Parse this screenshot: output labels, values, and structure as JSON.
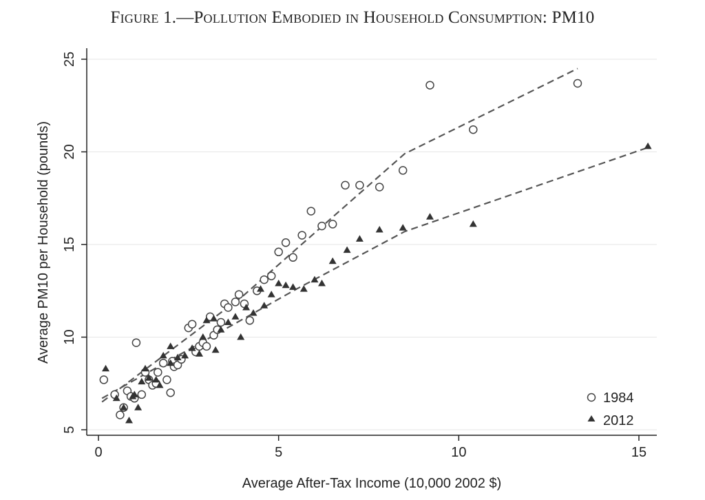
{
  "chart_data": {
    "type": "scatter",
    "title_prefix": "Figure 1.—",
    "title_main": "Pollution Embodied in Household Consumption",
    "title_suffix": ": PM10",
    "xlabel": "Average After-Tax Income (10,000 2002 $)",
    "ylabel": "Average PM10 per Household (pounds)",
    "xlim": [
      0,
      15.5
    ],
    "ylim": [
      5,
      25.5
    ],
    "xticks": [
      0,
      5,
      10,
      15
    ],
    "yticks": [
      5,
      10,
      15,
      20,
      25
    ],
    "grid": "horizontal",
    "legend_position": "bottom-right",
    "series": [
      {
        "name": "1984",
        "marker": "hollow-circle",
        "points": [
          [
            0.15,
            7.7
          ],
          [
            0.45,
            6.9
          ],
          [
            0.6,
            5.8
          ],
          [
            0.7,
            6.2
          ],
          [
            0.8,
            7.1
          ],
          [
            0.9,
            6.8
          ],
          [
            1.0,
            6.7
          ],
          [
            1.05,
            9.7
          ],
          [
            1.2,
            6.9
          ],
          [
            1.3,
            8.1
          ],
          [
            1.4,
            7.7
          ],
          [
            1.5,
            7.4
          ],
          [
            1.6,
            7.5
          ],
          [
            1.65,
            8.1
          ],
          [
            1.8,
            8.6
          ],
          [
            1.9,
            7.7
          ],
          [
            2.0,
            7.0
          ],
          [
            2.05,
            8.7
          ],
          [
            2.1,
            8.4
          ],
          [
            2.2,
            8.5
          ],
          [
            2.3,
            8.8
          ],
          [
            2.5,
            10.5
          ],
          [
            2.6,
            10.7
          ],
          [
            2.7,
            9.2
          ],
          [
            2.8,
            9.5
          ],
          [
            2.9,
            9.7
          ],
          [
            3.0,
            9.5
          ],
          [
            3.1,
            11.1
          ],
          [
            3.2,
            10.1
          ],
          [
            3.3,
            10.4
          ],
          [
            3.4,
            10.8
          ],
          [
            3.5,
            11.8
          ],
          [
            3.6,
            11.6
          ],
          [
            3.8,
            11.9
          ],
          [
            3.9,
            12.3
          ],
          [
            4.05,
            11.8
          ],
          [
            4.2,
            10.9
          ],
          [
            4.4,
            12.5
          ],
          [
            4.6,
            13.1
          ],
          [
            4.8,
            13.3
          ],
          [
            5.0,
            14.6
          ],
          [
            5.2,
            15.1
          ],
          [
            5.4,
            14.3
          ],
          [
            5.65,
            15.5
          ],
          [
            5.9,
            16.8
          ],
          [
            6.2,
            16.0
          ],
          [
            6.5,
            16.1
          ],
          [
            6.85,
            18.2
          ],
          [
            7.25,
            18.2
          ],
          [
            7.8,
            18.1
          ],
          [
            8.45,
            19.0
          ],
          [
            9.2,
            23.6
          ],
          [
            10.4,
            21.2
          ],
          [
            13.3,
            23.7
          ]
        ],
        "fit_line": [
          [
            0.1,
            6.5
          ],
          [
            4.0,
            12.2
          ],
          [
            8.5,
            19.9
          ],
          [
            13.3,
            24.5
          ]
        ]
      },
      {
        "name": "2012",
        "marker": "filled-triangle",
        "points": [
          [
            0.2,
            8.3
          ],
          [
            0.5,
            6.7
          ],
          [
            0.7,
            6.2
          ],
          [
            0.85,
            5.5
          ],
          [
            0.95,
            6.8
          ],
          [
            1.0,
            6.9
          ],
          [
            1.1,
            6.2
          ],
          [
            1.2,
            7.6
          ],
          [
            1.3,
            8.3
          ],
          [
            1.4,
            7.8
          ],
          [
            1.6,
            7.7
          ],
          [
            1.7,
            7.4
          ],
          [
            1.8,
            9.0
          ],
          [
            2.0,
            8.6
          ],
          [
            2.0,
            9.5
          ],
          [
            2.2,
            8.9
          ],
          [
            2.4,
            9.0
          ],
          [
            2.6,
            9.4
          ],
          [
            2.8,
            9.1
          ],
          [
            2.9,
            10.0
          ],
          [
            3.0,
            10.9
          ],
          [
            3.2,
            11.0
          ],
          [
            3.25,
            9.3
          ],
          [
            3.4,
            10.4
          ],
          [
            3.6,
            10.8
          ],
          [
            3.8,
            11.1
          ],
          [
            3.95,
            10.0
          ],
          [
            4.1,
            11.6
          ],
          [
            4.3,
            11.3
          ],
          [
            4.5,
            12.6
          ],
          [
            4.6,
            11.7
          ],
          [
            4.8,
            12.3
          ],
          [
            5.0,
            12.9
          ],
          [
            5.2,
            12.8
          ],
          [
            5.4,
            12.7
          ],
          [
            5.7,
            12.6
          ],
          [
            6.0,
            13.1
          ],
          [
            6.2,
            12.9
          ],
          [
            6.5,
            14.1
          ],
          [
            6.9,
            14.7
          ],
          [
            7.25,
            15.3
          ],
          [
            7.8,
            15.8
          ],
          [
            8.45,
            15.9
          ],
          [
            9.2,
            16.5
          ],
          [
            10.4,
            16.1
          ],
          [
            15.25,
            20.3
          ]
        ],
        "fit_line": [
          [
            0.1,
            6.7
          ],
          [
            5.5,
            12.6
          ],
          [
            8.5,
            15.7
          ],
          [
            15.2,
            20.2
          ]
        ]
      }
    ]
  }
}
